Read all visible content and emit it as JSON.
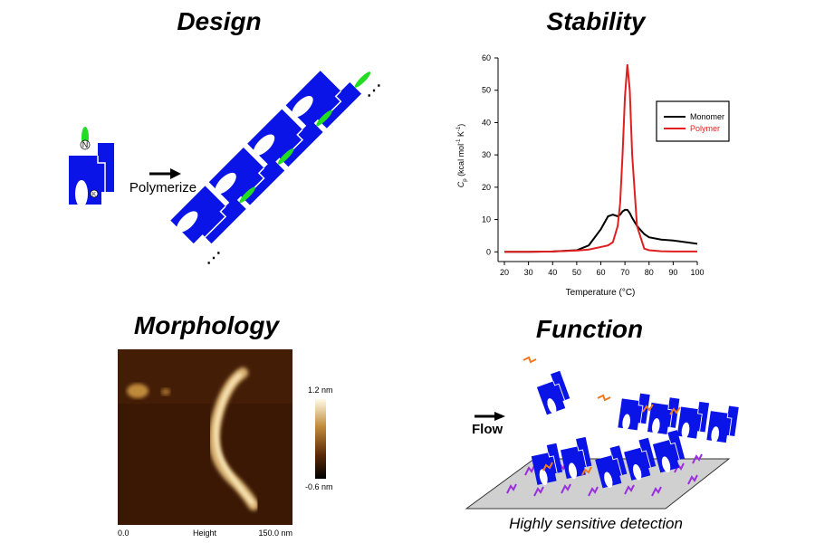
{
  "panels": {
    "design": {
      "title": "Design",
      "arrow_label": "Polymerize",
      "unit_labels": [
        "N",
        "K"
      ]
    },
    "morphology": {
      "title": "Morphology",
      "scale_max": "1.2 nm",
      "scale_min": "-0.6 nm",
      "axis_start": "0.0",
      "axis_label": "Height",
      "axis_end": "150.0 nm"
    },
    "function": {
      "title": "Function",
      "flow_label": "Flow",
      "caption": "Highly sensitive detection"
    }
  },
  "chart_data": {
    "type": "line",
    "title": "Stability",
    "xlabel": "Temperature (°C)",
    "ylabel": [
      "C",
      "p",
      " (kcal mol",
      "-1",
      " K",
      "-1",
      ")"
    ],
    "x": [
      20,
      30,
      40,
      50,
      55,
      60,
      63,
      65,
      67,
      68,
      69,
      70,
      71,
      72,
      73,
      75,
      78,
      80,
      85,
      90,
      100
    ],
    "series": [
      {
        "name": "Monomer",
        "color": "#000000",
        "values": [
          0,
          0,
          0.1,
          0.5,
          2,
          7,
          11,
          11.5,
          11,
          11.5,
          12.5,
          13,
          13,
          12,
          10.5,
          8,
          5.5,
          4.5,
          3.8,
          3.5,
          2.5
        ]
      },
      {
        "name": "Polymer",
        "color": "#e02020",
        "values": [
          0,
          0,
          0.1,
          0.4,
          0.7,
          1.5,
          2,
          3,
          8,
          15,
          30,
          48,
          58,
          50,
          30,
          8,
          1,
          0.5,
          0.2,
          0.1,
          0.1
        ]
      }
    ],
    "xlim": [
      20,
      100
    ],
    "ylim": [
      -3,
      60
    ],
    "xticks": [
      20,
      30,
      40,
      50,
      60,
      70,
      80,
      90,
      100
    ],
    "yticks": [
      0,
      10,
      20,
      30,
      40,
      50,
      60
    ]
  }
}
